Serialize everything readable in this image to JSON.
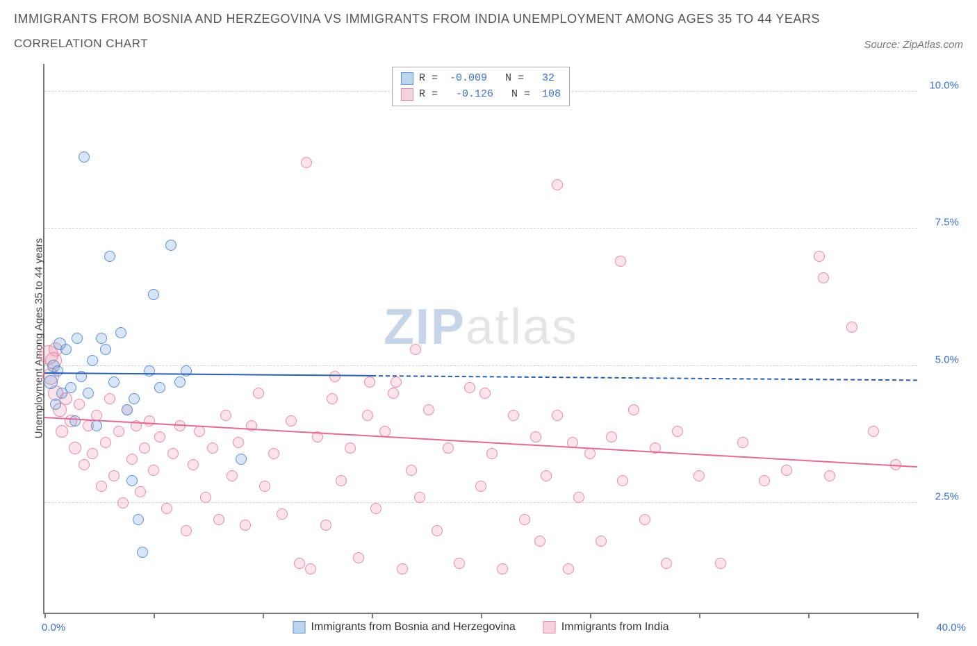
{
  "title": "IMMIGRANTS FROM BOSNIA AND HERZEGOVINA VS IMMIGRANTS FROM INDIA UNEMPLOYMENT AMONG AGES 35 TO 44 YEARS",
  "subtitle": "CORRELATION CHART",
  "source": "Source: ZipAtlas.com",
  "watermark_a": "ZIP",
  "watermark_b": "atlas",
  "chart": {
    "type": "scatter",
    "ylabel": "Unemployment Among Ages 35 to 44 years",
    "xlim": [
      0,
      40
    ],
    "ylim": [
      0.5,
      10.5
    ],
    "yticks": [
      2.5,
      5.0,
      7.5,
      10.0
    ],
    "ytick_labels": [
      "2.5%",
      "5.0%",
      "7.5%",
      "10.0%"
    ],
    "xticks": [
      0,
      5,
      10,
      15,
      20,
      25,
      30,
      35,
      40
    ],
    "xaxis_left_label": "0.0%",
    "xaxis_right_label": "40.0%",
    "background_color": "#ffffff",
    "grid_color": "#d0d0d0",
    "axis_color": "#777777",
    "tick_label_color": "#3b6fc9",
    "series": {
      "bosnia": {
        "label": "Immigrants from Bosnia and Herzegovina",
        "fill": "rgba(100,150,220,0.25)",
        "stroke": "#5b8fd6",
        "swatch_fill": "#bdd4ef",
        "swatch_border": "#5b8fd6",
        "R": "-0.009",
        "N": "32",
        "trend": {
          "x1": 0,
          "y1": 4.85,
          "x2": 40,
          "y2": 4.72,
          "solid_until_x": 15,
          "color": "#2a5db0"
        },
        "points": [
          {
            "x": 0.3,
            "y": 4.7,
            "r": 10
          },
          {
            "x": 0.4,
            "y": 5.0,
            "r": 9
          },
          {
            "x": 0.5,
            "y": 4.3,
            "r": 8
          },
          {
            "x": 0.6,
            "y": 4.9,
            "r": 8
          },
          {
            "x": 0.7,
            "y": 5.4,
            "r": 9
          },
          {
            "x": 0.8,
            "y": 4.5,
            "r": 8
          },
          {
            "x": 1.0,
            "y": 5.3,
            "r": 8
          },
          {
            "x": 1.2,
            "y": 4.6,
            "r": 8
          },
          {
            "x": 1.4,
            "y": 4.0,
            "r": 8
          },
          {
            "x": 1.5,
            "y": 5.5,
            "r": 8
          },
          {
            "x": 1.7,
            "y": 4.8,
            "r": 8
          },
          {
            "x": 1.8,
            "y": 8.8,
            "r": 8
          },
          {
            "x": 2.0,
            "y": 4.5,
            "r": 8
          },
          {
            "x": 2.2,
            "y": 5.1,
            "r": 8
          },
          {
            "x": 2.4,
            "y": 3.9,
            "r": 8
          },
          {
            "x": 2.6,
            "y": 5.5,
            "r": 8
          },
          {
            "x": 2.8,
            "y": 5.3,
            "r": 8
          },
          {
            "x": 3.0,
            "y": 7.0,
            "r": 8
          },
          {
            "x": 3.2,
            "y": 4.7,
            "r": 8
          },
          {
            "x": 3.5,
            "y": 5.6,
            "r": 8
          },
          {
            "x": 3.8,
            "y": 4.2,
            "r": 8
          },
          {
            "x": 4.0,
            "y": 2.9,
            "r": 8
          },
          {
            "x": 4.1,
            "y": 4.4,
            "r": 8
          },
          {
            "x": 4.3,
            "y": 2.2,
            "r": 8
          },
          {
            "x": 4.5,
            "y": 1.6,
            "r": 8
          },
          {
            "x": 4.8,
            "y": 4.9,
            "r": 8
          },
          {
            "x": 5.0,
            "y": 6.3,
            "r": 8
          },
          {
            "x": 5.3,
            "y": 4.6,
            "r": 8
          },
          {
            "x": 5.8,
            "y": 7.2,
            "r": 8
          },
          {
            "x": 6.2,
            "y": 4.7,
            "r": 8
          },
          {
            "x": 6.5,
            "y": 4.9,
            "r": 8
          },
          {
            "x": 9.0,
            "y": 3.3,
            "r": 8
          }
        ]
      },
      "india": {
        "label": "Immigrants from India",
        "fill": "rgba(235,130,160,0.22)",
        "stroke": "#e78aa8",
        "swatch_fill": "#f6d2dd",
        "swatch_border": "#e78aa8",
        "R": "-0.126",
        "N": "108",
        "trend": {
          "x1": 0,
          "y1": 4.05,
          "x2": 40,
          "y2": 3.15,
          "solid_until_x": 40,
          "color": "#e26a94"
        },
        "points": [
          {
            "x": 0.2,
            "y": 5.2,
            "r": 14
          },
          {
            "x": 0.3,
            "y": 4.8,
            "r": 12
          },
          {
            "x": 0.4,
            "y": 5.1,
            "r": 12
          },
          {
            "x": 0.5,
            "y": 4.5,
            "r": 11
          },
          {
            "x": 0.5,
            "y": 5.3,
            "r": 10
          },
          {
            "x": 0.7,
            "y": 4.2,
            "r": 10
          },
          {
            "x": 0.8,
            "y": 3.8,
            "r": 9
          },
          {
            "x": 1.0,
            "y": 4.4,
            "r": 9
          },
          {
            "x": 1.2,
            "y": 4.0,
            "r": 9
          },
          {
            "x": 1.4,
            "y": 3.5,
            "r": 9
          },
          {
            "x": 1.6,
            "y": 4.3,
            "r": 8
          },
          {
            "x": 1.8,
            "y": 3.2,
            "r": 8
          },
          {
            "x": 2.0,
            "y": 3.9,
            "r": 8
          },
          {
            "x": 2.2,
            "y": 3.4,
            "r": 8
          },
          {
            "x": 2.4,
            "y": 4.1,
            "r": 8
          },
          {
            "x": 2.6,
            "y": 2.8,
            "r": 8
          },
          {
            "x": 2.8,
            "y": 3.6,
            "r": 8
          },
          {
            "x": 3.0,
            "y": 4.4,
            "r": 8
          },
          {
            "x": 3.2,
            "y": 3.0,
            "r": 8
          },
          {
            "x": 3.4,
            "y": 3.8,
            "r": 8
          },
          {
            "x": 3.6,
            "y": 2.5,
            "r": 8
          },
          {
            "x": 3.8,
            "y": 4.2,
            "r": 8
          },
          {
            "x": 4.0,
            "y": 3.3,
            "r": 8
          },
          {
            "x": 4.2,
            "y": 3.9,
            "r": 8
          },
          {
            "x": 4.4,
            "y": 2.7,
            "r": 8
          },
          {
            "x": 4.6,
            "y": 3.5,
            "r": 8
          },
          {
            "x": 4.8,
            "y": 4.0,
            "r": 8
          },
          {
            "x": 5.0,
            "y": 3.1,
            "r": 8
          },
          {
            "x": 5.3,
            "y": 3.7,
            "r": 8
          },
          {
            "x": 5.6,
            "y": 2.4,
            "r": 8
          },
          {
            "x": 5.9,
            "y": 3.4,
            "r": 8
          },
          {
            "x": 6.2,
            "y": 3.9,
            "r": 8
          },
          {
            "x": 6.5,
            "y": 2.0,
            "r": 8
          },
          {
            "x": 6.8,
            "y": 3.2,
            "r": 8
          },
          {
            "x": 7.1,
            "y": 3.8,
            "r": 8
          },
          {
            "x": 7.4,
            "y": 2.6,
            "r": 8
          },
          {
            "x": 7.7,
            "y": 3.5,
            "r": 8
          },
          {
            "x": 8.0,
            "y": 2.2,
            "r": 8
          },
          {
            "x": 8.3,
            "y": 4.1,
            "r": 8
          },
          {
            "x": 8.6,
            "y": 3.0,
            "r": 8
          },
          {
            "x": 8.9,
            "y": 3.6,
            "r": 8
          },
          {
            "x": 9.2,
            "y": 2.1,
            "r": 8
          },
          {
            "x": 9.5,
            "y": 3.9,
            "r": 8
          },
          {
            "x": 9.8,
            "y": 4.5,
            "r": 8
          },
          {
            "x": 10.1,
            "y": 2.8,
            "r": 8
          },
          {
            "x": 10.5,
            "y": 3.4,
            "r": 8
          },
          {
            "x": 10.9,
            "y": 2.3,
            "r": 8
          },
          {
            "x": 11.3,
            "y": 4.0,
            "r": 8
          },
          {
            "x": 11.7,
            "y": 1.4,
            "r": 8
          },
          {
            "x": 12.0,
            "y": 8.7,
            "r": 8
          },
          {
            "x": 12.2,
            "y": 1.3,
            "r": 8
          },
          {
            "x": 12.5,
            "y": 3.7,
            "r": 8
          },
          {
            "x": 12.9,
            "y": 2.1,
            "r": 8
          },
          {
            "x": 13.2,
            "y": 4.4,
            "r": 8
          },
          {
            "x": 13.3,
            "y": 4.8,
            "r": 8
          },
          {
            "x": 13.6,
            "y": 2.9,
            "r": 8
          },
          {
            "x": 14.0,
            "y": 3.5,
            "r": 8
          },
          {
            "x": 14.4,
            "y": 1.5,
            "r": 8
          },
          {
            "x": 14.8,
            "y": 4.1,
            "r": 8
          },
          {
            "x": 14.9,
            "y": 4.7,
            "r": 8
          },
          {
            "x": 15.2,
            "y": 2.4,
            "r": 8
          },
          {
            "x": 15.6,
            "y": 3.8,
            "r": 8
          },
          {
            "x": 16.0,
            "y": 4.5,
            "r": 8
          },
          {
            "x": 16.1,
            "y": 4.7,
            "r": 8
          },
          {
            "x": 16.4,
            "y": 1.3,
            "r": 8
          },
          {
            "x": 16.8,
            "y": 3.1,
            "r": 8
          },
          {
            "x": 17.0,
            "y": 5.3,
            "r": 8
          },
          {
            "x": 17.2,
            "y": 2.6,
            "r": 8
          },
          {
            "x": 17.6,
            "y": 4.2,
            "r": 8
          },
          {
            "x": 18.0,
            "y": 2.0,
            "r": 8
          },
          {
            "x": 18.5,
            "y": 3.5,
            "r": 8
          },
          {
            "x": 19.0,
            "y": 1.4,
            "r": 8
          },
          {
            "x": 19.5,
            "y": 4.6,
            "r": 8
          },
          {
            "x": 20.0,
            "y": 2.8,
            "r": 8
          },
          {
            "x": 20.2,
            "y": 4.5,
            "r": 8
          },
          {
            "x": 20.5,
            "y": 3.4,
            "r": 8
          },
          {
            "x": 21.0,
            "y": 1.3,
            "r": 8
          },
          {
            "x": 21.5,
            "y": 4.1,
            "r": 8
          },
          {
            "x": 22.0,
            "y": 2.2,
            "r": 8
          },
          {
            "x": 22.5,
            "y": 3.7,
            "r": 8
          },
          {
            "x": 22.7,
            "y": 1.8,
            "r": 8
          },
          {
            "x": 23.0,
            "y": 3.0,
            "r": 8
          },
          {
            "x": 23.5,
            "y": 8.3,
            "r": 8
          },
          {
            "x": 23.5,
            "y": 4.1,
            "r": 8
          },
          {
            "x": 24.0,
            "y": 1.3,
            "r": 8
          },
          {
            "x": 24.2,
            "y": 3.6,
            "r": 8
          },
          {
            "x": 24.5,
            "y": 2.6,
            "r": 8
          },
          {
            "x": 25.0,
            "y": 3.4,
            "r": 8
          },
          {
            "x": 25.5,
            "y": 1.8,
            "r": 8
          },
          {
            "x": 26.0,
            "y": 3.7,
            "r": 8
          },
          {
            "x": 26.4,
            "y": 6.9,
            "r": 8
          },
          {
            "x": 26.5,
            "y": 2.9,
            "r": 8
          },
          {
            "x": 27.0,
            "y": 4.2,
            "r": 8
          },
          {
            "x": 27.5,
            "y": 2.2,
            "r": 8
          },
          {
            "x": 28.0,
            "y": 3.5,
            "r": 8
          },
          {
            "x": 28.5,
            "y": 1.4,
            "r": 8
          },
          {
            "x": 29.0,
            "y": 3.8,
            "r": 8
          },
          {
            "x": 30.0,
            "y": 3.0,
            "r": 8
          },
          {
            "x": 31.0,
            "y": 1.4,
            "r": 8
          },
          {
            "x": 32.0,
            "y": 3.6,
            "r": 8
          },
          {
            "x": 33.0,
            "y": 2.9,
            "r": 8
          },
          {
            "x": 34.0,
            "y": 3.1,
            "r": 8
          },
          {
            "x": 35.5,
            "y": 7.0,
            "r": 8
          },
          {
            "x": 35.7,
            "y": 6.6,
            "r": 8
          },
          {
            "x": 36.0,
            "y": 3.0,
            "r": 8
          },
          {
            "x": 37.0,
            "y": 5.7,
            "r": 8
          },
          {
            "x": 38.0,
            "y": 3.8,
            "r": 8
          },
          {
            "x": 39.0,
            "y": 3.2,
            "r": 8
          }
        ]
      }
    }
  }
}
